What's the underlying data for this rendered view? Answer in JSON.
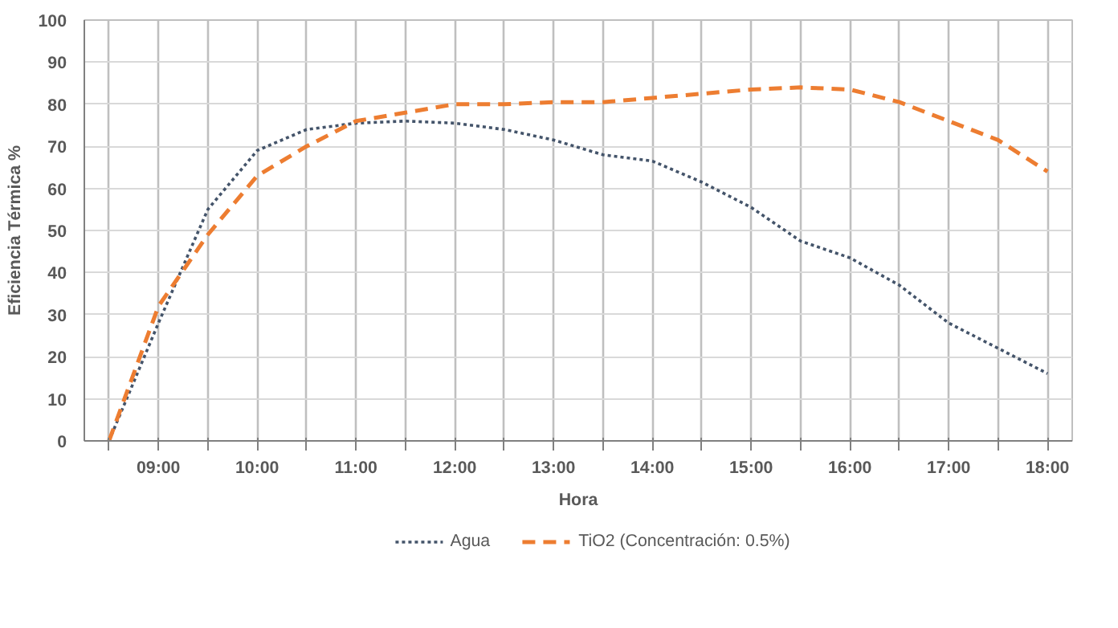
{
  "chart_data": {
    "type": "line",
    "xlabel": "Hora",
    "ylabel": "Eficiencia Térmica %",
    "x": [
      8.5,
      9,
      9.5,
      10,
      10.5,
      11,
      11.5,
      12,
      12.5,
      13,
      13.5,
      14,
      14.5,
      15,
      15.5,
      16,
      16.5,
      17,
      17.5,
      18
    ],
    "series": [
      {
        "name": "Agua",
        "color": "#44546a",
        "line_style": "dotted",
        "values": [
          0,
          28,
          55,
          69,
          74,
          75.5,
          76,
          75.5,
          74,
          71.5,
          68,
          66.5,
          61.5,
          55.5,
          47.5,
          43.5,
          37,
          28,
          22,
          16
        ]
      },
      {
        "name": "TiO2 (Concentración: 0.5%)",
        "color": "#ed7d31",
        "line_style": "dashed",
        "values": [
          0,
          32,
          49,
          63,
          70,
          76,
          78,
          80,
          80,
          80.5,
          80.5,
          81.5,
          82.5,
          83.5,
          84,
          83.5,
          80.5,
          76,
          71.5,
          64
        ]
      }
    ],
    "xlim": [
      8.25,
      18.25
    ],
    "xticks": [
      {
        "value": 8.5,
        "label": null
      },
      {
        "value": 9,
        "label": "09:00"
      },
      {
        "value": 9.5,
        "label": null
      },
      {
        "value": 10,
        "label": "10:00"
      },
      {
        "value": 10.5,
        "label": null
      },
      {
        "value": 11,
        "label": "11:00"
      },
      {
        "value": 11.5,
        "label": null
      },
      {
        "value": 12,
        "label": "12:00"
      },
      {
        "value": 12.5,
        "label": null
      },
      {
        "value": 13,
        "label": "13:00"
      },
      {
        "value": 13.5,
        "label": null
      },
      {
        "value": 14,
        "label": "14:00"
      },
      {
        "value": 14.5,
        "label": null
      },
      {
        "value": 15,
        "label": "15:00"
      },
      {
        "value": 15.5,
        "label": null
      },
      {
        "value": 16,
        "label": "16:00"
      },
      {
        "value": 16.5,
        "label": null
      },
      {
        "value": 17,
        "label": "17:00"
      },
      {
        "value": 17.5,
        "label": null
      },
      {
        "value": 18,
        "label": "18:00"
      }
    ],
    "ylim": [
      0,
      100
    ],
    "yticks": [
      0,
      10,
      20,
      30,
      40,
      50,
      60,
      70,
      80,
      90,
      100
    ],
    "grid": true,
    "legend": "bottom"
  }
}
